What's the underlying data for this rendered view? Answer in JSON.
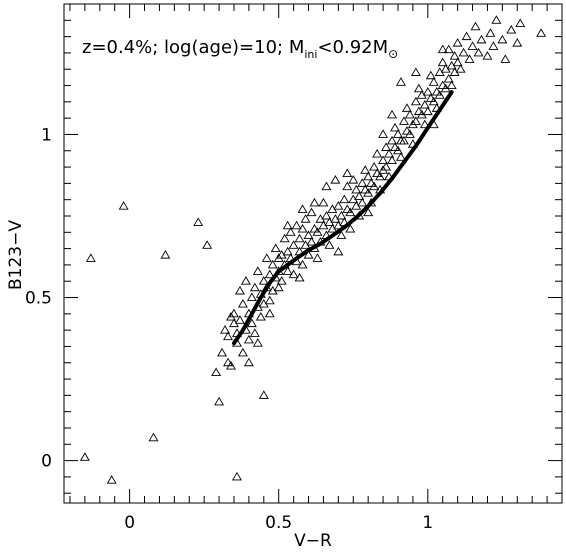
{
  "chart_data": {
    "type": "scatter",
    "annotation": {
      "prefix": "z=0.4%;  log(age)=10;  M",
      "subscript": "ini",
      "mid": "<0.92M",
      "sun_symbol": "⊙"
    },
    "xlabel": "V−R",
    "ylabel": "B123−V",
    "xlim": [
      -0.22,
      1.45
    ],
    "ylim": [
      -0.13,
      1.4
    ],
    "x_ticks": [
      {
        "value": 0,
        "label": "0"
      },
      {
        "value": 0.5,
        "label": "0.5"
      },
      {
        "value": 1,
        "label": "1"
      }
    ],
    "y_ticks": [
      {
        "value": 0,
        "label": "0"
      },
      {
        "value": 0.5,
        "label": "0.5"
      },
      {
        "value": 1,
        "label": "1"
      }
    ],
    "grid": false,
    "marker": "triangle-open",
    "series": [
      {
        "kind": "scatter",
        "points": [
          [
            -0.15,
            0.01
          ],
          [
            -0.13,
            0.62
          ],
          [
            -0.06,
            -0.06
          ],
          [
            -0.02,
            0.78
          ],
          [
            0.08,
            0.07
          ],
          [
            0.12,
            0.63
          ],
          [
            0.23,
            0.73
          ],
          [
            0.26,
            0.66
          ],
          [
            0.36,
            -0.05
          ],
          [
            0.45,
            0.2
          ],
          [
            0.3,
            0.18
          ],
          [
            0.29,
            0.27
          ],
          [
            0.31,
            0.33
          ],
          [
            0.32,
            0.4
          ],
          [
            0.33,
            0.38
          ],
          [
            0.33,
            0.3
          ],
          [
            0.34,
            0.29
          ],
          [
            0.35,
            0.42
          ],
          [
            0.35,
            0.45
          ],
          [
            0.36,
            0.36
          ],
          [
            0.37,
            0.43
          ],
          [
            0.37,
            0.52
          ],
          [
            0.38,
            0.33
          ],
          [
            0.38,
            0.48
          ],
          [
            0.39,
            0.4
          ],
          [
            0.39,
            0.55
          ],
          [
            0.4,
            0.37
          ],
          [
            0.4,
            0.45
          ],
          [
            0.41,
            0.42
          ],
          [
            0.41,
            0.5
          ],
          [
            0.42,
            0.39
          ],
          [
            0.42,
            0.53
          ],
          [
            0.43,
            0.47
          ],
          [
            0.43,
            0.58
          ],
          [
            0.44,
            0.44
          ],
          [
            0.44,
            0.51
          ],
          [
            0.45,
            0.55
          ],
          [
            0.45,
            0.48
          ],
          [
            0.46,
            0.62
          ],
          [
            0.46,
            0.53
          ],
          [
            0.47,
            0.57
          ],
          [
            0.47,
            0.49
          ],
          [
            0.48,
            0.6
          ],
          [
            0.48,
            0.52
          ],
          [
            0.49,
            0.56
          ],
          [
            0.49,
            0.65
          ],
          [
            0.5,
            0.58
          ],
          [
            0.5,
            0.53
          ],
          [
            0.51,
            0.63
          ],
          [
            0.51,
            0.55
          ],
          [
            0.52,
            0.6
          ],
          [
            0.52,
            0.68
          ],
          [
            0.53,
            0.58
          ],
          [
            0.53,
            0.64
          ],
          [
            0.54,
            0.62
          ],
          [
            0.54,
            0.7
          ],
          [
            0.55,
            0.57
          ],
          [
            0.55,
            0.66
          ],
          [
            0.56,
            0.61
          ],
          [
            0.56,
            0.72
          ],
          [
            0.57,
            0.64
          ],
          [
            0.57,
            0.68
          ],
          [
            0.58,
            0.6
          ],
          [
            0.58,
            0.71
          ],
          [
            0.59,
            0.66
          ],
          [
            0.59,
            0.74
          ],
          [
            0.6,
            0.63
          ],
          [
            0.6,
            0.69
          ],
          [
            0.61,
            0.67
          ],
          [
            0.61,
            0.76
          ],
          [
            0.62,
            0.65
          ],
          [
            0.62,
            0.71
          ],
          [
            0.63,
            0.7
          ],
          [
            0.63,
            0.62
          ],
          [
            0.64,
            0.74
          ],
          [
            0.64,
            0.67
          ],
          [
            0.65,
            0.72
          ],
          [
            0.65,
            0.79
          ],
          [
            0.66,
            0.69
          ],
          [
            0.66,
            0.75
          ],
          [
            0.67,
            0.73
          ],
          [
            0.67,
            0.66
          ],
          [
            0.68,
            0.77
          ],
          [
            0.68,
            0.71
          ],
          [
            0.69,
            0.74
          ],
          [
            0.69,
            0.86
          ],
          [
            0.7,
            0.72
          ],
          [
            0.7,
            0.78
          ],
          [
            0.71,
            0.75
          ],
          [
            0.71,
            0.69
          ],
          [
            0.72,
            0.8
          ],
          [
            0.72,
            0.73
          ],
          [
            0.73,
            0.77
          ],
          [
            0.73,
            0.84
          ],
          [
            0.74,
            0.76
          ],
          [
            0.74,
            0.71
          ],
          [
            0.75,
            0.8
          ],
          [
            0.75,
            0.86
          ],
          [
            0.76,
            0.78
          ],
          [
            0.76,
            0.83
          ],
          [
            0.77,
            0.81
          ],
          [
            0.77,
            0.75
          ],
          [
            0.78,
            0.85
          ],
          [
            0.78,
            0.79
          ],
          [
            0.79,
            0.83
          ],
          [
            0.79,
            0.89
          ],
          [
            0.8,
            0.82
          ],
          [
            0.8,
            0.87
          ],
          [
            0.81,
            0.85
          ],
          [
            0.81,
            0.79
          ],
          [
            0.82,
            0.9
          ],
          [
            0.82,
            0.84
          ],
          [
            0.83,
            0.88
          ],
          [
            0.83,
            0.94
          ],
          [
            0.84,
            0.87
          ],
          [
            0.84,
            0.83
          ],
          [
            0.85,
            0.92
          ],
          [
            0.85,
            0.89
          ],
          [
            0.86,
            0.96
          ],
          [
            0.86,
            0.9
          ],
          [
            0.87,
            0.94
          ],
          [
            0.87,
            0.87
          ],
          [
            0.88,
            0.98
          ],
          [
            0.88,
            0.92
          ],
          [
            0.89,
            0.96
          ],
          [
            0.89,
            1.02
          ],
          [
            0.9,
            0.95
          ],
          [
            0.9,
            1.0
          ],
          [
            0.91,
            0.98
          ],
          [
            0.91,
            0.93
          ],
          [
            0.92,
            1.04
          ],
          [
            0.92,
            0.98
          ],
          [
            0.93,
            1.01
          ],
          [
            0.93,
            1.08
          ],
          [
            0.94,
            1.0
          ],
          [
            0.94,
            1.06
          ],
          [
            0.95,
            1.03
          ],
          [
            0.95,
            0.97
          ],
          [
            0.96,
            1.1
          ],
          [
            0.96,
            1.04
          ],
          [
            0.97,
            1.07
          ],
          [
            0.97,
            1.14
          ],
          [
            0.98,
            1.06
          ],
          [
            0.98,
            1.12
          ],
          [
            0.99,
            1.09
          ],
          [
            0.99,
            1.03
          ],
          [
            1.0,
            1.13
          ],
          [
            1.0,
            1.07
          ],
          [
            1.01,
            1.11
          ],
          [
            1.01,
            1.18
          ],
          [
            1.02,
            1.1
          ],
          [
            1.02,
            1.16
          ],
          [
            1.03,
            1.13
          ],
          [
            1.03,
            1.08
          ],
          [
            1.04,
            1.19
          ],
          [
            1.04,
            1.12
          ],
          [
            1.05,
            1.15
          ],
          [
            1.05,
            1.22
          ],
          [
            1.06,
            1.14
          ],
          [
            1.06,
            1.2
          ],
          [
            1.07,
            1.17
          ],
          [
            1.07,
            1.26
          ],
          [
            1.08,
            1.21
          ],
          [
            1.08,
            1.15
          ],
          [
            1.09,
            1.24
          ],
          [
            1.09,
            1.19
          ],
          [
            1.1,
            1.22
          ],
          [
            1.1,
            1.28
          ],
          [
            1.11,
            1.2
          ],
          [
            1.12,
            1.25
          ],
          [
            1.13,
            1.3
          ],
          [
            1.14,
            1.23
          ],
          [
            1.15,
            1.27
          ],
          [
            1.16,
            1.33
          ],
          [
            1.17,
            1.25
          ],
          [
            1.18,
            1.29
          ],
          [
            1.2,
            1.24
          ],
          [
            1.21,
            1.31
          ],
          [
            1.22,
            1.27
          ],
          [
            1.23,
            1.35
          ],
          [
            1.25,
            1.29
          ],
          [
            1.26,
            1.23
          ],
          [
            1.28,
            1.32
          ],
          [
            1.3,
            1.28
          ],
          [
            1.31,
            1.34
          ],
          [
            1.38,
            1.31
          ],
          [
            0.73,
            0.88
          ],
          [
            0.66,
            0.84
          ],
          [
            0.91,
            1.16
          ],
          [
            0.47,
            0.45
          ],
          [
            0.4,
            0.3
          ],
          [
            0.36,
            0.39
          ],
          [
            0.58,
            0.77
          ],
          [
            0.62,
            0.79
          ],
          [
            0.53,
            0.72
          ],
          [
            0.7,
            0.64
          ],
          [
            0.96,
            1.19
          ],
          [
            1.05,
            1.26
          ],
          [
            1.02,
            1.03
          ],
          [
            0.88,
            1.06
          ],
          [
            0.8,
            0.76
          ],
          [
            0.85,
            1.0
          ],
          [
            0.57,
            0.56
          ],
          [
            0.5,
            0.62
          ],
          [
            0.43,
            0.36
          ],
          [
            0.34,
            0.44
          ]
        ]
      },
      {
        "kind": "line",
        "points": [
          [
            0.35,
            0.36
          ],
          [
            0.38,
            0.4
          ],
          [
            0.41,
            0.45
          ],
          [
            0.44,
            0.5
          ],
          [
            0.47,
            0.545
          ],
          [
            0.5,
            0.58
          ],
          [
            0.53,
            0.6
          ],
          [
            0.56,
            0.62
          ],
          [
            0.6,
            0.645
          ],
          [
            0.64,
            0.665
          ],
          [
            0.68,
            0.69
          ],
          [
            0.72,
            0.715
          ],
          [
            0.76,
            0.745
          ],
          [
            0.8,
            0.78
          ],
          [
            0.84,
            0.82
          ],
          [
            0.88,
            0.865
          ],
          [
            0.92,
            0.915
          ],
          [
            0.96,
            0.965
          ],
          [
            1.0,
            1.02
          ],
          [
            1.04,
            1.075
          ],
          [
            1.08,
            1.13
          ]
        ]
      }
    ]
  }
}
